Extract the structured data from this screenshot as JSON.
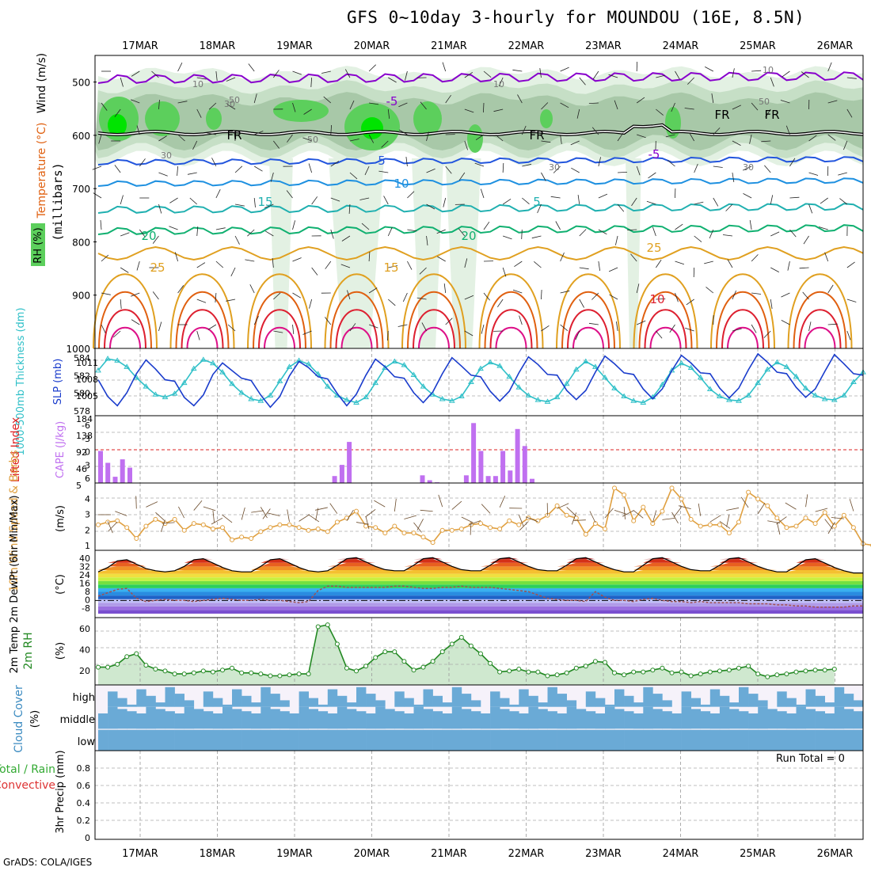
{
  "title": "GFS 0~10day 3-hourly for MOUNDOU (16E, 8.5N)",
  "credit": "GrADS: COLA/IGES",
  "run_total_text": "Run Total = 0",
  "days": [
    "17MAR",
    "18MAR",
    "19MAR",
    "20MAR",
    "21MAR",
    "22MAR",
    "23MAR",
    "24MAR",
    "25MAR",
    "26MAR"
  ],
  "colors": {
    "rh_light": "#e3f1e3",
    "rh_mid": "#c6dfc6",
    "rh_dark": "#a8c8a8",
    "rh_green": "#5ccf5c",
    "rh_bright": "#00e400",
    "t_purple": "#8800cc",
    "t_blue": "#2255dd",
    "t_lblue": "#1e90e0",
    "t_cyan": "#20b0b0",
    "t_teal": "#10b070",
    "t_orange": "#e0a020",
    "t_dorange": "#e06010",
    "t_red": "#dd2030",
    "t_magenta": "#dd1088",
    "slp": "#1a3ccc",
    "thickness": "#30c0c8",
    "cape": "#c070f0",
    "lifted": "#dd2222",
    "wind": "#e0a040",
    "dewpt": "#a05050",
    "rh2m": "#228822",
    "cloud": "#6aaad6",
    "cloud_bg": "#f6f2fa",
    "cloud_gap": "#e8e8e8"
  },
  "panels": {
    "upper_air": {
      "ylabel": "(millibars)",
      "legend_labels": [
        "Wind (m/s)",
        "Temperature (°C)",
        "RH (%)"
      ],
      "pressure_ticks": [
        "500",
        "600",
        "700",
        "800",
        "900",
        "1000"
      ],
      "contour_labels": [
        "-5",
        "5",
        "10",
        "15",
        "20",
        "25",
        "FR",
        "FR",
        "FR",
        "FR",
        "-5",
        "5",
        "15",
        "25",
        "20",
        "10"
      ],
      "rh_labels": [
        "10",
        "30",
        "50",
        "50",
        "30",
        "10",
        "30",
        "10",
        "30",
        "50"
      ]
    },
    "slp_thickness": {
      "ylabel_left": "1000-500mb Thickness (dm)",
      "ylabel_right": "SLP (mb)",
      "ticks_left": [
        "584",
        "582",
        "580",
        "578"
      ],
      "ticks_right": [
        "1011",
        "1008",
        "1005"
      ]
    },
    "cape_li": {
      "ylabel_left": "Lifted Index",
      "ylabel_right": "CAPE (J/kg)",
      "ticks_left": [
        "-6",
        "-3",
        "0",
        "3",
        "6"
      ],
      "ticks_right": [
        "184",
        "138",
        "92",
        "46",
        "5"
      ]
    },
    "wind10m": {
      "ylabel": "10m Wind Speed & Barbs",
      "unit": "(m/s)",
      "ticks": [
        "4",
        "3",
        "2",
        "1"
      ]
    },
    "temp2m": {
      "ylabel": "2m Temp 2m DewPt (6hr Min/Max)",
      "unit": "(°C)",
      "ticks": [
        "40",
        "32",
        "24",
        "16",
        "8",
        "0",
        "-8"
      ]
    },
    "rh2m": {
      "ylabel": "2m RH",
      "unit": "(%)",
      "ticks": [
        "60",
        "40",
        "20"
      ]
    },
    "cloud": {
      "ylabel": "Cloud Cover",
      "unit": "(%)",
      "rows": [
        "high",
        "middle",
        "low"
      ]
    },
    "precip": {
      "ylabel": "3hr Precip (mm)",
      "legend_a": "Total / Rain",
      "legend_b": "Convective",
      "ticks": [
        "0.8",
        "0.6",
        "0.4",
        "0.2",
        "0"
      ]
    }
  },
  "chart_data": [
    {
      "type": "line",
      "name": "SLP (mb)",
      "values": [
        1008.2,
        1006.0,
        1004.8,
        1006.5,
        1009.0,
        1010.8,
        1009.6,
        1008.2,
        1008.0,
        1005.9,
        1004.8,
        1006.2,
        1008.9,
        1010.4,
        1009.4,
        1008.4,
        1008.1,
        1006.2,
        1004.6,
        1006.0,
        1008.7,
        1010.6,
        1009.8,
        1008.6,
        1008.3,
        1006.4,
        1004.8,
        1006.3,
        1008.8,
        1010.9,
        1009.9,
        1008.6,
        1008.4,
        1006.5,
        1005.2,
        1006.6,
        1009.0,
        1011.1,
        1010.0,
        1008.8,
        1008.6,
        1006.7,
        1005.4,
        1006.7,
        1009.1,
        1011.2,
        1010.2,
        1008.9,
        1008.8,
        1006.8,
        1005.6,
        1006.8,
        1009.2,
        1011.3,
        1010.3,
        1009.1,
        1008.9,
        1007.0,
        1005.7,
        1007.0,
        1009.4,
        1011.4,
        1010.4,
        1009.1,
        1009.0,
        1007.1,
        1005.8,
        1007.1,
        1009.5,
        1011.6,
        1010.5,
        1009.2,
        1009.0,
        1007.2,
        1005.9,
        1007.0,
        1009.3,
        1011.5,
        1010.3,
        1009.0,
        1008.8
      ]
    },
    {
      "type": "line",
      "name": "1000-500mb Thickness (dm)",
      "values": [
        582.8,
        584.1,
        583.9,
        583.2,
        582.0,
        581.0,
        580.1,
        579.8,
        580.2,
        581.4,
        583.0,
        584.0,
        583.6,
        582.6,
        581.3,
        580.3,
        579.6,
        579.4,
        580.0,
        581.6,
        583.2,
        583.9,
        583.5,
        582.4,
        581.0,
        580.0,
        579.5,
        579.2,
        579.8,
        581.4,
        583.1,
        583.8,
        583.4,
        582.3,
        581.0,
        580.1,
        579.6,
        579.4,
        579.9,
        581.5,
        583.0,
        583.7,
        583.3,
        582.1,
        580.9,
        580.0,
        579.5,
        579.3,
        579.8,
        581.3,
        582.9,
        583.8,
        583.2,
        582.0,
        580.8,
        579.9,
        579.4,
        579.2,
        579.8,
        581.2,
        582.8,
        583.6,
        583.1,
        582.0,
        580.7,
        579.9,
        579.5,
        579.4,
        580.0,
        581.4,
        582.9,
        583.7,
        583.2,
        582.1,
        580.8,
        580.0,
        579.6,
        579.5,
        580.0,
        581.5,
        582.6
      ]
    },
    {
      "type": "bar",
      "name": "CAPE (J/kg)",
      "values": [
        92,
        58,
        18,
        68,
        44,
        0,
        0,
        0,
        0,
        0,
        0,
        0,
        0,
        0,
        0,
        0,
        0,
        0,
        0,
        0,
        0,
        0,
        0,
        0,
        0,
        0,
        0,
        0,
        0,
        0,
        0,
        0,
        20,
        52,
        118,
        0,
        0,
        0,
        0,
        0,
        0,
        0,
        0,
        0,
        22,
        8,
        2,
        0,
        0,
        0,
        22,
        172,
        92,
        20,
        20,
        92,
        36,
        155,
        106,
        12,
        0,
        0,
        0,
        0,
        0,
        0,
        0,
        0,
        0,
        0,
        0,
        0,
        0,
        0,
        0,
        0,
        0,
        0,
        0,
        0,
        0,
        0,
        0,
        0,
        0,
        0,
        0,
        0,
        0,
        0,
        0,
        0,
        0,
        0,
        0,
        0,
        0,
        0,
        0,
        0,
        0,
        0,
        0,
        0,
        0
      ]
    },
    {
      "type": "line",
      "name": "10m Wind Speed (m/s)",
      "values": [
        2.1,
        2.3,
        2.4,
        1.9,
        1.1,
        2.0,
        2.5,
        2.2,
        2.5,
        1.7,
        2.2,
        2.1,
        1.8,
        1.9,
        1.0,
        1.2,
        1.1,
        1.6,
        1.9,
        2.1,
        2.1,
        1.9,
        1.7,
        1.8,
        1.6,
        2.3,
        2.6,
        3.1,
        2.0,
        1.9,
        1.5,
        2.0,
        1.5,
        1.5,
        1.2,
        0.8,
        1.7,
        1.7,
        1.8,
        2.1,
        2.2,
        1.9,
        1.8,
        2.4,
        2.1,
        2.6,
        2.4,
        2.8,
        3.5,
        2.8,
        2.6,
        1.4,
        2.2,
        1.8,
        4.8,
        4.3,
        2.4,
        3.4,
        2.2,
        3.1,
        4.8,
        4.0,
        2.5,
        2.0,
        2.1,
        2.1,
        1.5,
        2.3,
        4.5,
        4.0,
        3.5,
        2.6,
        1.9,
        2.0,
        2.6,
        2.2,
        3.0,
        2.0,
        2.8,
        1.9,
        0.7,
        0.6,
        2.0
      ]
    },
    {
      "type": "area",
      "name": "2m Temp (°C)",
      "values": [
        26,
        30,
        36,
        37,
        33,
        29,
        27,
        26,
        27,
        31,
        37,
        38,
        34,
        30,
        27,
        26,
        26,
        31,
        37,
        38,
        34,
        30,
        27,
        26,
        27,
        32,
        38,
        39,
        35,
        31,
        28,
        27,
        27,
        32,
        38,
        39,
        35,
        31,
        28,
        27,
        27,
        32,
        38,
        39,
        35,
        31,
        28,
        27,
        27,
        32,
        38,
        39,
        35,
        31,
        28,
        26,
        26,
        32,
        38,
        39,
        35,
        31,
        28,
        27,
        27,
        32,
        38,
        39,
        35,
        31,
        28,
        26,
        26,
        31,
        37,
        38,
        34,
        30,
        27,
        25,
        25
      ]
    },
    {
      "type": "line",
      "name": "2m DewPt (°C)",
      "values": [
        4,
        7,
        10,
        11,
        2,
        -1,
        0,
        1,
        0,
        0,
        -1,
        0,
        1,
        2,
        1,
        0,
        0,
        1,
        0,
        0,
        -1,
        -2,
        -1,
        9,
        13,
        13,
        12,
        12,
        12,
        12,
        12,
        13,
        13,
        12,
        11,
        11,
        12,
        12,
        13,
        12,
        12,
        12,
        11,
        10,
        9,
        8,
        5,
        2,
        1,
        0,
        0,
        -1,
        8,
        3,
        0,
        0,
        -1,
        1,
        2,
        0,
        -1,
        -1,
        -2,
        -1,
        -2,
        -2,
        -2,
        -2,
        -3,
        -3,
        -3,
        -4,
        -4,
        -5,
        -5,
        -6,
        -6,
        -6,
        -6,
        -5,
        -5
      ]
    },
    {
      "type": "area",
      "name": "2m RH (%)",
      "values": [
        16,
        16,
        19,
        27,
        30,
        18,
        14,
        12,
        9,
        9,
        10,
        12,
        11,
        13,
        15,
        10,
        10,
        9,
        7,
        7,
        8,
        9,
        9,
        58,
        60,
        40,
        15,
        12,
        17,
        26,
        32,
        32,
        22,
        13,
        16,
        22,
        32,
        40,
        47,
        38,
        30,
        20,
        11,
        12,
        14,
        11,
        11,
        7,
        8,
        10,
        15,
        17,
        22,
        21,
        10,
        8,
        11,
        11,
        13,
        15,
        10,
        11,
        7,
        9,
        11,
        12,
        13,
        15,
        17,
        9,
        6,
        8,
        9,
        11,
        12,
        13,
        13,
        14
      ]
    },
    {
      "type": "table",
      "name": "Cloud Cover",
      "rows": [
        "high",
        "middle",
        "low"
      ],
      "units": "%",
      "note": "high layer intermittent; middle and low mostly overcast"
    },
    {
      "type": "bar",
      "name": "3hr Precip (mm)",
      "values": [],
      "ylim": [
        0,
        0.9
      ]
    }
  ]
}
